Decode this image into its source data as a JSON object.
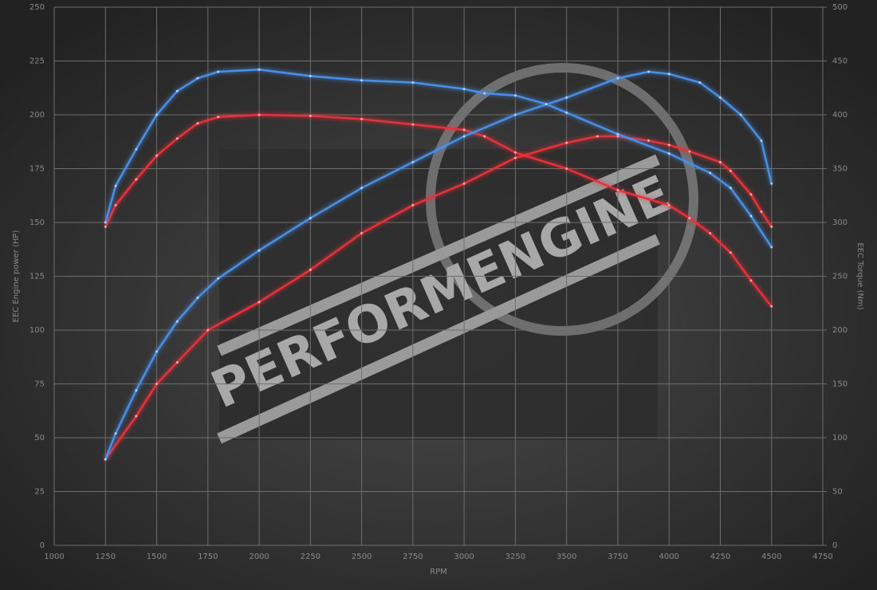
{
  "chart_data": {
    "type": "line",
    "xlabel": "RPM",
    "ylabel": "EEC Engine power (HP)",
    "y2label": "EEC Torque (Nm)",
    "watermark": "PERFORMENGINE",
    "xlim": [
      1000,
      4750
    ],
    "xticks": [
      1000,
      1250,
      1500,
      1750,
      2000,
      2250,
      2500,
      2750,
      3000,
      3250,
      3500,
      3750,
      4000,
      4250,
      4500,
      4750
    ],
    "ylim": [
      0,
      250
    ],
    "yticks": [
      0,
      25,
      50,
      75,
      100,
      125,
      150,
      175,
      200,
      225,
      250
    ],
    "y2lim": [
      0,
      500
    ],
    "y2ticks": [
      0,
      50,
      100,
      150,
      200,
      250,
      300,
      350,
      400,
      450,
      500
    ],
    "grid": true,
    "series": [
      {
        "color": "#e8303a",
        "axis": "y",
        "x": [
          1250,
          1400,
          1500,
          1600,
          1750,
          2000,
          2250,
          2500,
          2750,
          3000,
          3250,
          3500,
          3650,
          3750,
          3900,
          4000,
          4100,
          4250,
          4300,
          4400,
          4450,
          4500
        ],
        "values": [
          40,
          60,
          75,
          85,
          100,
          113,
          128,
          145,
          158,
          168,
          180,
          187,
          190,
          190,
          188,
          186,
          183,
          178,
          174,
          163,
          155,
          148
        ]
      },
      {
        "color": "#e8303a",
        "axis": "y2",
        "x": [
          1250,
          1300,
          1400,
          1500,
          1600,
          1700,
          1800,
          2000,
          2250,
          2500,
          2750,
          3000,
          3100,
          3250,
          3500,
          3750,
          4000,
          4100,
          4200,
          4300,
          4400,
          4500
        ],
        "values": [
          296,
          316,
          340,
          362,
          378,
          392,
          398,
          400,
          399,
          396,
          391,
          386,
          380,
          365,
          350,
          330,
          316,
          304,
          290,
          272,
          246,
          222
        ]
      },
      {
        "color": "#4a8fe8",
        "axis": "y",
        "x": [
          1250,
          1300,
          1400,
          1500,
          1600,
          1700,
          1800,
          2000,
          2250,
          2500,
          2750,
          3000,
          3250,
          3500,
          3750,
          3900,
          4000,
          4150,
          4250,
          4350,
          4450,
          4500
        ],
        "values": [
          40,
          52,
          72,
          90,
          104,
          115,
          124,
          137,
          152,
          166,
          178,
          190,
          200,
          208,
          217,
          220,
          219,
          215,
          208,
          200,
          188,
          168
        ]
      },
      {
        "color": "#4a8fe8",
        "axis": "y2",
        "x": [
          1250,
          1300,
          1400,
          1500,
          1600,
          1700,
          1800,
          2000,
          2250,
          2500,
          2750,
          3000,
          3100,
          3250,
          3400,
          3500,
          3750,
          4000,
          4200,
          4300,
          4400,
          4500
        ],
        "values": [
          300,
          334,
          368,
          400,
          422,
          434,
          440,
          442,
          436,
          432,
          430,
          424,
          420,
          418,
          410,
          402,
          382,
          364,
          346,
          332,
          306,
          277
        ]
      }
    ]
  }
}
